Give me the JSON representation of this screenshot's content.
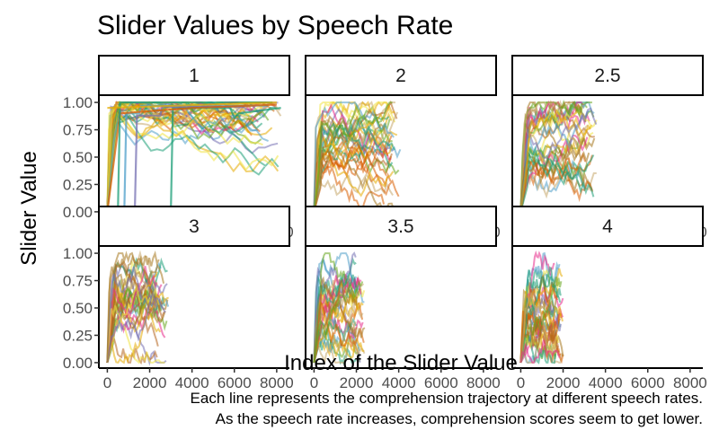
{
  "chart_data": {
    "type": "line",
    "title": "Slider Values by Speech Rate",
    "xlabel": "Index of the Slider Value",
    "ylabel": "Slider Value",
    "xlim": [
      -400,
      8600
    ],
    "ylim": [
      -0.05,
      1.05
    ],
    "x_ticks": [
      0,
      2000,
      4000,
      6000,
      8000
    ],
    "x_tick_labels": [
      "0",
      "2000",
      "4000",
      "6000",
      "8000"
    ],
    "y_ticks": [
      0,
      0.25,
      0.5,
      0.75,
      1
    ],
    "y_tick_labels": [
      "0.00",
      "0.25",
      "0.50",
      "0.75",
      "1.00"
    ],
    "legend": "none",
    "grid": false,
    "colors": [
      "#1b9e77",
      "#d95f02",
      "#7570b3",
      "#e7298a",
      "#66a61e",
      "#e6ab02",
      "#a6761d",
      "#f0e442",
      "#c7a76b",
      "#4e9fc9",
      "#b5651d"
    ],
    "caption": [
      "Each line represents the comprehension trajectory at different speech rates.",
      "As the speech rate increases, comprehension scores seem to get lower."
    ],
    "panels": [
      {
        "label": "1",
        "max_index": 8200,
        "mean_level": 0.95,
        "spread": 0.06,
        "series": [
          {
            "color": "#1b9e77",
            "values": [
              [
                0,
                0
              ],
              [
                3000,
                0
              ],
              [
                3100,
                0.95
              ],
              [
                5800,
                0.95
              ],
              [
                6000,
                0.86
              ],
              [
                6200,
                0.9
              ],
              [
                8200,
                0.95
              ]
            ]
          },
          {
            "color": "#4e9fc9",
            "values": [
              [
                0,
                0
              ],
              [
                800,
                0
              ],
              [
                900,
                0.9
              ],
              [
                1500,
                0.9
              ],
              [
                1600,
                0.97
              ],
              [
                7600,
                0.97
              ]
            ]
          },
          {
            "color": "#7570b3",
            "values": [
              [
                0,
                0
              ],
              [
                1300,
                0
              ],
              [
                1400,
                0.88
              ],
              [
                2500,
                0.88
              ],
              [
                2600,
                0.96
              ],
              [
                6500,
                0.96
              ]
            ]
          },
          {
            "color": "#d95f02",
            "values": [
              [
                0,
                0
              ],
              [
                600,
                0.9
              ],
              [
                4000,
                0.95
              ],
              [
                8000,
                0.98
              ]
            ]
          },
          {
            "color": "#1b9e77",
            "values": [
              [
                0,
                0
              ],
              [
                500,
                0
              ],
              [
                600,
                1
              ],
              [
                7800,
                1
              ]
            ]
          },
          {
            "color": "#e6ab02",
            "values": [
              [
                0,
                0.95
              ],
              [
                8000,
                1
              ]
            ]
          }
        ]
      },
      {
        "label": "2",
        "max_index": 4100,
        "mean_level": 0.62,
        "spread": 0.28,
        "series": []
      },
      {
        "label": "2.5",
        "max_index": 3600,
        "mean_level": 0.6,
        "spread": 0.32,
        "series": []
      },
      {
        "label": "3",
        "max_index": 2900,
        "mean_level": 0.55,
        "spread": 0.33,
        "series": []
      },
      {
        "label": "3.5",
        "max_index": 2400,
        "mean_level": 0.5,
        "spread": 0.33,
        "series": []
      },
      {
        "label": "4",
        "max_index": 2000,
        "mean_level": 0.45,
        "spread": 0.33,
        "series": []
      }
    ]
  }
}
